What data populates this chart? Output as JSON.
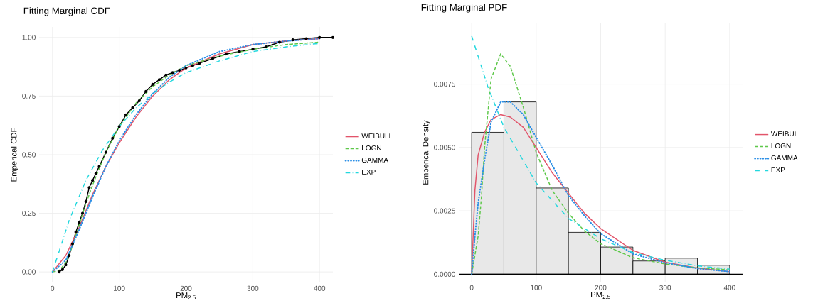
{
  "chart_data": [
    {
      "type": "line",
      "title": "Fitting Marginal CDF",
      "xlabel": "PM$_{2.5}$",
      "ylabel": "Emperical CDF",
      "xlim": [
        -20,
        420
      ],
      "ylim": [
        -0.045,
        1.045
      ],
      "xticks": [
        0,
        100,
        200,
        300,
        400
      ],
      "yticks": [
        {
          "value": 0,
          "label": "0.00"
        },
        {
          "value": 0.25,
          "label": "0.25"
        },
        {
          "value": 0.5,
          "label": "0.50"
        },
        {
          "value": 0.75,
          "label": "0.75"
        },
        {
          "value": 1,
          "label": "1.00"
        }
      ],
      "grid": true,
      "legend": "right",
      "series": [
        {
          "color": "#000000",
          "marker": "circle",
          "line_style": "solid",
          "x": [
            10,
            15,
            20,
            25,
            30,
            35,
            40,
            45,
            50,
            55,
            60,
            65,
            70,
            80,
            90,
            100,
            110,
            120,
            130,
            140,
            150,
            160,
            170,
            180,
            190,
            200,
            210,
            220,
            240,
            260,
            280,
            300,
            320,
            340,
            360,
            380,
            400,
            420
          ],
          "values": [
            0,
            0.01,
            0.03,
            0.07,
            0.12,
            0.17,
            0.21,
            0.25,
            0.3,
            0.36,
            0.39,
            0.42,
            0.45,
            0.51,
            0.57,
            0.62,
            0.67,
            0.7,
            0.73,
            0.77,
            0.8,
            0.82,
            0.84,
            0.85,
            0.86,
            0.87,
            0.88,
            0.89,
            0.91,
            0.93,
            0.94,
            0.95,
            0.96,
            0.98,
            0.99,
            0.995,
            1,
            1
          ]
        },
        {
          "name": "WEIBULL",
          "color": "#e2546a",
          "line_style": "solid",
          "x": [
            0,
            20,
            40,
            60,
            80,
            100,
            125,
            150,
            175,
            200,
            250,
            300,
            350,
            400
          ],
          "values": [
            0,
            0.07,
            0.19,
            0.33,
            0.45,
            0.55,
            0.66,
            0.75,
            0.82,
            0.87,
            0.93,
            0.97,
            0.985,
            0.995
          ]
        },
        {
          "name": "LOGN",
          "color": "#5ec84a",
          "line_style": "dashed",
          "x": [
            0,
            10,
            20,
            30,
            40,
            50,
            60,
            80,
            100,
            125,
            150,
            175,
            200,
            250,
            300,
            350,
            400
          ],
          "values": [
            0,
            0.005,
            0.04,
            0.11,
            0.2,
            0.29,
            0.37,
            0.51,
            0.62,
            0.72,
            0.79,
            0.84,
            0.88,
            0.92,
            0.95,
            0.97,
            0.98
          ]
        },
        {
          "name": "GAMMA",
          "color": "#2b8fe6",
          "line_style": "dotted",
          "x": [
            0,
            20,
            40,
            60,
            80,
            100,
            125,
            150,
            175,
            200,
            250,
            300,
            350,
            400
          ],
          "values": [
            0,
            0.05,
            0.18,
            0.32,
            0.45,
            0.56,
            0.67,
            0.76,
            0.83,
            0.88,
            0.94,
            0.97,
            0.985,
            0.995
          ]
        },
        {
          "name": "EXP",
          "color": "#22d8de",
          "line_style": "dashdot",
          "x": [
            0,
            25,
            50,
            75,
            100,
            125,
            150,
            175,
            200,
            250,
            300,
            350,
            400
          ],
          "values": [
            0,
            0.22,
            0.39,
            0.52,
            0.62,
            0.7,
            0.76,
            0.81,
            0.85,
            0.9,
            0.94,
            0.96,
            0.975
          ]
        }
      ]
    },
    {
      "type": "histogram",
      "title": "Fitting Marginal PDF",
      "xlabel": "PM$_{2.5}$",
      "ylabel": "Emperical Density",
      "xlim": [
        -20,
        420
      ],
      "ylim": [
        -0.0003,
        0.0099
      ],
      "xticks": [
        0,
        100,
        200,
        300,
        400
      ],
      "yticks": [
        {
          "value": 0,
          "label": "0.0000"
        },
        {
          "value": 0.0025,
          "label": "0.0025"
        },
        {
          "value": 0.005,
          "label": "0.0050"
        },
        {
          "value": 0.0075,
          "label": "0.0075"
        }
      ],
      "grid": true,
      "legend": "right",
      "color": "#e8e8e8",
      "bins": [
        0,
        50,
        100,
        150,
        200,
        250,
        300,
        350,
        400
      ],
      "values": [
        0.0056,
        0.0068,
        0.0034,
        0.00165,
        0.00107,
        0.00052,
        0.00063,
        0.00035
      ],
      "series": [
        {
          "name": "WEIBULL",
          "type": "line",
          "color": "#e2546a",
          "line_style": "solid",
          "x": [
            0,
            5,
            10,
            20,
            30,
            45,
            60,
            80,
            100,
            125,
            150,
            175,
            200,
            250,
            300,
            350,
            400
          ],
          "values": [
            0,
            0.0033,
            0.0047,
            0.0056,
            0.0061,
            0.0063,
            0.0062,
            0.0058,
            0.005,
            0.004,
            0.0032,
            0.0024,
            0.0018,
            0.00094,
            0.00047,
            0.00024,
            0.0001
          ]
        },
        {
          "name": "LOGN",
          "type": "line",
          "color": "#5ec84a",
          "line_style": "dashed",
          "x": [
            0,
            10,
            15,
            20,
            30,
            45,
            60,
            80,
            100,
            125,
            150,
            175,
            200,
            250,
            300,
            350,
            400
          ],
          "values": [
            0,
            0.0015,
            0.003,
            0.005,
            0.0077,
            0.0087,
            0.0082,
            0.0066,
            0.0048,
            0.0033,
            0.0024,
            0.0017,
            0.0012,
            0.00065,
            0.0004,
            0.00025,
            0.00017
          ]
        },
        {
          "name": "GAMMA",
          "type": "line",
          "color": "#2b8fe6",
          "line_style": "dotted",
          "x": [
            0,
            5,
            10,
            20,
            30,
            45,
            60,
            80,
            100,
            125,
            150,
            175,
            200,
            250,
            300,
            350,
            400
          ],
          "values": [
            0,
            0.0015,
            0.0028,
            0.0045,
            0.006,
            0.0068,
            0.0068,
            0.0063,
            0.0054,
            0.0043,
            0.0031,
            0.0023,
            0.0016,
            0.0008,
            0.00045,
            0.00022,
            0.0001
          ]
        },
        {
          "name": "EXP",
          "type": "line",
          "color": "#22d8de",
          "line_style": "dashdot",
          "x": [
            0,
            25,
            50,
            100,
            150,
            200,
            250,
            300,
            350,
            400
          ],
          "values": [
            0.0094,
            0.0074,
            0.0058,
            0.0036,
            0.0022,
            0.0014,
            0.00085,
            0.00055,
            0.00033,
            0.0002
          ]
        }
      ]
    }
  ]
}
